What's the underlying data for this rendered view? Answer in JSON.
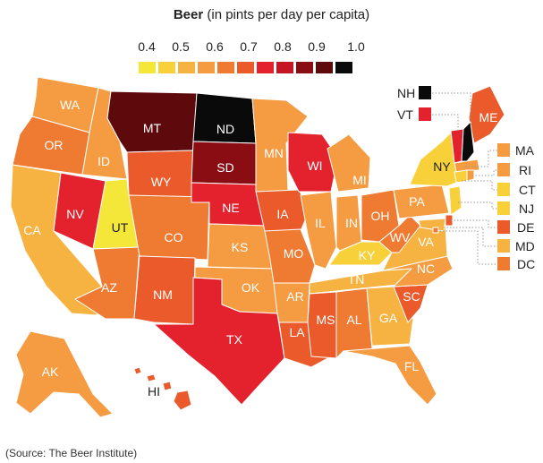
{
  "title": {
    "bold": "Beer",
    "rest": "(in pints per day per capita)"
  },
  "legend": {
    "labels": [
      "0.4",
      "0.5",
      "0.6",
      "0.7",
      "0.8",
      "0.9",
      "1.0"
    ],
    "colors": [
      "#f5e63a",
      "#f8d13a",
      "#f7b341",
      "#f59c42",
      "#ef7b32",
      "#ea5a2a",
      "#e3222e",
      "#c41624",
      "#8a0d14",
      "#5e0a0c",
      "#0a0a0a"
    ]
  },
  "colors": {
    "c1": "#f5e63a",
    "c2": "#f8d13a",
    "c3": "#f7b341",
    "c4": "#f59c42",
    "c5": "#ef7b32",
    "c6": "#ea5a2a",
    "c7": "#e3222e",
    "c8": "#c41624",
    "c9": "#8a0d14",
    "c10": "#5e0a0c",
    "c11": "#0a0a0a"
  },
  "states": {
    "WA": "WA",
    "OR": "OR",
    "CA": "CA",
    "ID": "ID",
    "NV": "NV",
    "UT": "UT",
    "AZ": "AZ",
    "MT": "MT",
    "WY": "WY",
    "CO": "CO",
    "NM": "NM",
    "ND": "ND",
    "SD": "SD",
    "NE": "NE",
    "KS": "KS",
    "OK": "OK",
    "TX": "TX",
    "MN": "MN",
    "IA": "IA",
    "MO": "MO",
    "AR": "AR",
    "LA": "LA",
    "WI": "WI",
    "IL": "IL",
    "MS": "MS",
    "MI": "MI",
    "IN": "IN",
    "KY": "KY",
    "TN": "TN",
    "AL": "AL",
    "OH": "OH",
    "WV": "WV",
    "GA": "GA",
    "FL": "FL",
    "SC": "SC",
    "NC": "NC",
    "VA": "VA",
    "PA": "PA",
    "NY": "NY",
    "ME": "ME",
    "AK": "AK",
    "HI": "HI"
  },
  "callouts": {
    "NH": "NH",
    "VT": "VT",
    "MA": "MA",
    "RI": "RI",
    "CT": "CT",
    "NJ": "NJ",
    "DE": "DE",
    "MD": "MD",
    "DC": "DC"
  },
  "source": "(Source: The Beer Institute)"
}
